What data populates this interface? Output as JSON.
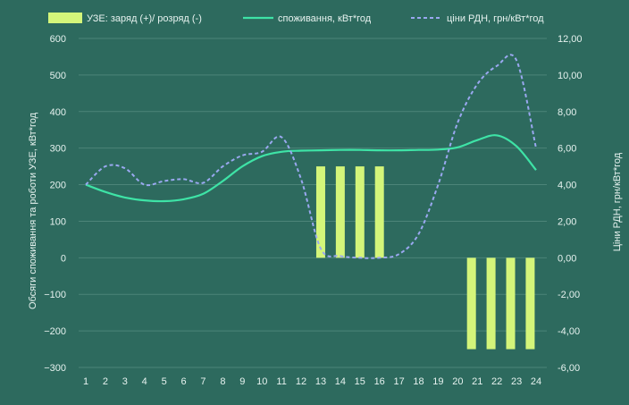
{
  "colors": {
    "background": "#2d6a5e",
    "bars": "#d4f57a",
    "consumption": "#3ee3a6",
    "price": "#9aa8f0",
    "text": "#e6f2ef",
    "grid": "#4c8478"
  },
  "chart_data": {
    "type": "bar+line",
    "legend": {
      "position": "top",
      "items": [
        {
          "label": "УЗЕ: заряд (+)/ розряд (-)",
          "kind": "bar"
        },
        {
          "label": "споживання, кВт*год",
          "kind": "line"
        },
        {
          "label": "ціни РДН, грн/кВт*год",
          "kind": "dashed-line"
        }
      ]
    },
    "xlabel": "",
    "ylabel_left": "Обсяги споживання та роботи УЗЕ, кВт*год",
    "ylabel_right": "Ціни РДН, грн/кВт*год",
    "x_ticks": [
      "1",
      "2",
      "3",
      "4",
      "5",
      "6",
      "7",
      "8",
      "9",
      "10",
      "11",
      "12",
      "13",
      "14",
      "15",
      "16",
      "17",
      "18",
      "19",
      "20",
      "21",
      "22",
      "23",
      "24"
    ],
    "y_left": {
      "min": -300,
      "max": 600,
      "ticks": [
        "600",
        "500",
        "400",
        "300",
        "200",
        "100",
        "0",
        "−100",
        "−200",
        "−300"
      ]
    },
    "y_right": {
      "min": -6,
      "max": 12,
      "ticks": [
        "12,00",
        "10,00",
        "8,00",
        "6,00",
        "4,00",
        "2,00",
        "0,00",
        "-2,00",
        "-4,00",
        "-6,00"
      ]
    },
    "bars": {
      "name": "УЗЕ: заряд (+)/ розряд (-)",
      "points": [
        {
          "x": 13,
          "y": 250
        },
        {
          "x": 14,
          "y": 250
        },
        {
          "x": 15,
          "y": 250
        },
        {
          "x": 16,
          "y": 250
        },
        {
          "x": 20.7,
          "y": -250
        },
        {
          "x": 21.7,
          "y": -250
        },
        {
          "x": 22.7,
          "y": -250
        },
        {
          "x": 23.7,
          "y": -250
        }
      ]
    },
    "series": [
      {
        "name": "споживання, кВт*год",
        "axis": "left",
        "x": [
          1,
          2,
          3,
          4,
          5,
          6,
          7,
          8,
          9,
          10,
          11,
          12,
          13,
          14,
          15,
          16,
          17,
          18,
          19,
          20,
          21,
          22,
          23,
          24
        ],
        "values": [
          200,
          180,
          165,
          157,
          155,
          160,
          175,
          210,
          250,
          278,
          290,
          293,
          294,
          295,
          295,
          294,
          294,
          295,
          296,
          302,
          322,
          335,
          305,
          240
        ]
      },
      {
        "name": "ціни РДН, грн/кВт*год",
        "axis": "right",
        "x": [
          1,
          2,
          3,
          4,
          5,
          6,
          7,
          8,
          9,
          10,
          11,
          12,
          13,
          14,
          15,
          16,
          17,
          18,
          19,
          20,
          21,
          22,
          23,
          24
        ],
        "values": [
          4.0,
          5.0,
          4.9,
          4.0,
          4.2,
          4.3,
          4.1,
          5.0,
          5.6,
          5.8,
          6.6,
          4.3,
          0.5,
          0.1,
          0.0,
          0.0,
          0.2,
          1.3,
          4.0,
          7.4,
          9.5,
          10.5,
          10.8,
          6.0
        ]
      }
    ]
  }
}
